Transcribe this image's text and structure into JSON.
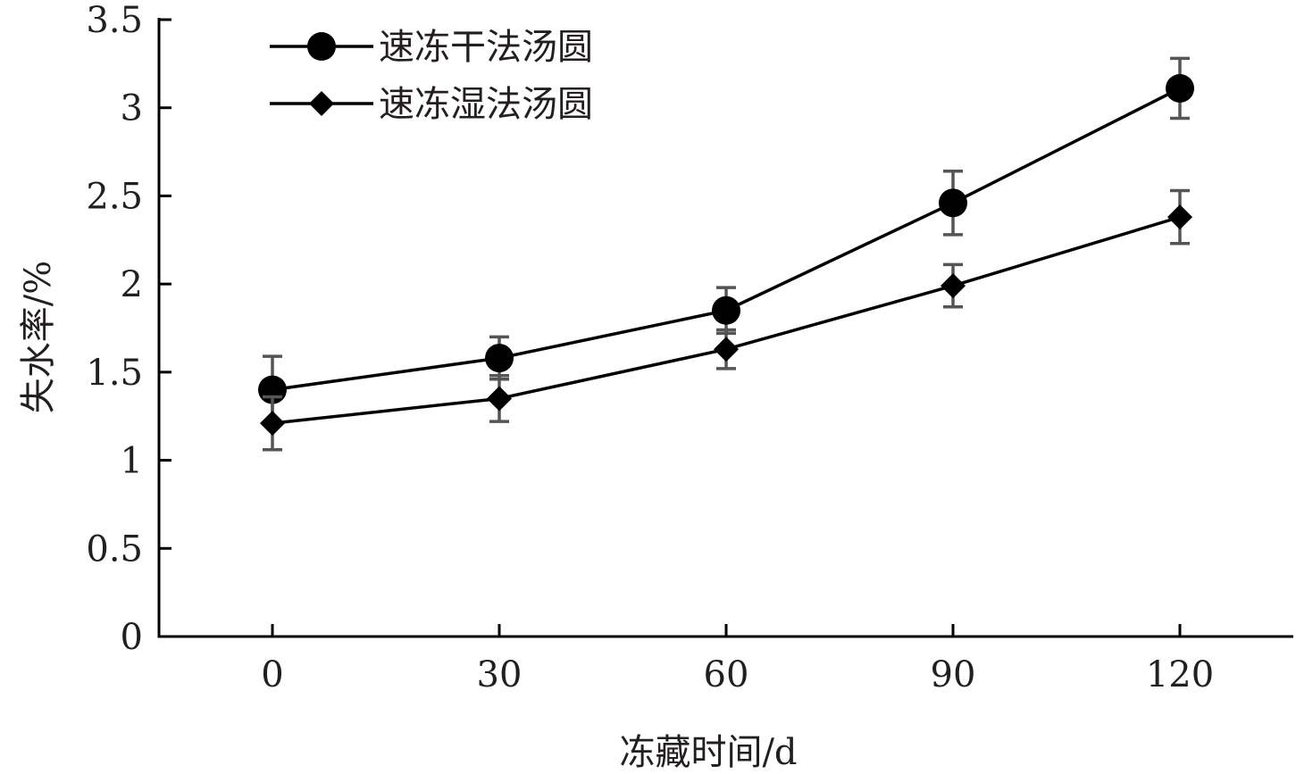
{
  "chart_data": {
    "type": "line",
    "title": "",
    "xlabel": "冻藏时间/d",
    "ylabel": "失水率/%",
    "x": [
      0,
      30,
      60,
      90,
      120
    ],
    "x_tick_labels": [
      "0",
      "30",
      "60",
      "90",
      "120"
    ],
    "y_tick_labels": [
      "0",
      "0.5",
      "1",
      "1.5",
      "2",
      "2.5",
      "3",
      "3.5"
    ],
    "y_ticks": [
      0,
      0.5,
      1,
      1.5,
      2,
      2.5,
      3,
      3.5
    ],
    "xlim": [
      -15,
      135
    ],
    "ylim": [
      0,
      3.5
    ],
    "grid": false,
    "legend_position": "top-left",
    "series": [
      {
        "name": "速冻干法汤圆",
        "marker": "circle",
        "values": [
          1.4,
          1.58,
          1.85,
          2.46,
          3.11
        ],
        "error": [
          0.19,
          0.12,
          0.13,
          0.18,
          0.17
        ]
      },
      {
        "name": "速冻湿法汤圆",
        "marker": "diamond",
        "values": [
          1.21,
          1.35,
          1.63,
          1.99,
          2.38
        ],
        "error": [
          0.15,
          0.13,
          0.11,
          0.12,
          0.15
        ]
      }
    ],
    "colors": {
      "line": "#000000",
      "errorbar": "#555555",
      "axis": "#000000",
      "text": "#231f20"
    }
  }
}
